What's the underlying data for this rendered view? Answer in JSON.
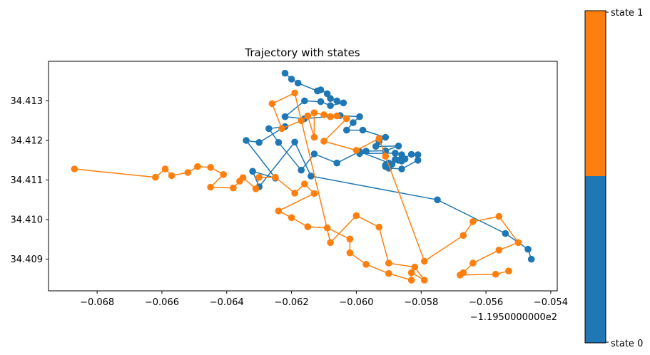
{
  "chart_data": {
    "type": "scatter",
    "title": "Trajectory with states",
    "xlabel": "",
    "ylabel": "",
    "x_offset_label": "−1.1950000000e2",
    "xlim": [
      -0.0695,
      -0.0538
    ],
    "ylim": [
      34.4082,
      34.414
    ],
    "x_ticks": [
      -0.068,
      -0.066,
      -0.064,
      -0.062,
      -0.06,
      -0.058,
      -0.056,
      -0.054
    ],
    "x_tick_labels": [
      "−0.068",
      "−0.066",
      "−0.064",
      "−0.062",
      "−0.060",
      "−0.058",
      "−0.056",
      "−0.054"
    ],
    "y_ticks": [
      34.409,
      34.41,
      34.411,
      34.412,
      34.413
    ],
    "y_tick_labels": [
      "34.409",
      "34.410",
      "34.411",
      "34.412",
      "34.413"
    ],
    "colorbar": {
      "labels": [
        "state 0",
        "state 1"
      ],
      "colors": [
        "#1f77b4",
        "#ff7f0e"
      ]
    },
    "series": [
      {
        "state": 0,
        "color": "#1f77b4",
        "points": [
          [
            -0.0622,
            34.4137
          ],
          [
            -0.062,
            34.41355
          ],
          [
            -0.0618,
            34.41345
          ],
          [
            -0.0612,
            34.41325
          ],
          [
            -0.0611,
            34.41328
          ],
          [
            -0.0609,
            34.41318
          ],
          [
            -0.0608,
            34.41306
          ],
          [
            -0.0606,
            34.413
          ],
          [
            -0.0604,
            34.41295
          ],
          [
            -0.0608,
            34.41288
          ],
          [
            -0.0611,
            34.41298
          ],
          [
            -0.0616,
            34.413
          ],
          [
            -0.0622,
            34.4126
          ],
          [
            -0.0616,
            34.41255
          ],
          [
            -0.0605,
            34.41263
          ],
          [
            -0.0599,
            34.4126
          ],
          [
            -0.0601,
            34.41245
          ],
          [
            -0.0603,
            34.41226
          ],
          [
            -0.0598,
            34.41226
          ],
          [
            -0.0591,
            34.41208
          ],
          [
            -0.0593,
            34.41197
          ],
          [
            -0.0594,
            34.41185
          ],
          [
            -0.0587,
            34.41186
          ],
          [
            -0.0591,
            34.41174
          ],
          [
            -0.0597,
            34.41173
          ],
          [
            -0.0599,
            34.41167
          ],
          [
            -0.0588,
            34.41168
          ],
          [
            -0.0586,
            34.41164
          ],
          [
            -0.0586,
            34.41148
          ],
          [
            -0.0585,
            34.41153
          ],
          [
            -0.0587,
            34.4115
          ],
          [
            -0.0588,
            34.41152
          ],
          [
            -0.059,
            34.41143
          ],
          [
            -0.0591,
            34.41138
          ],
          [
            -0.0591,
            34.41134
          ],
          [
            -0.059,
            34.4113
          ],
          [
            -0.0586,
            34.41128
          ],
          [
            -0.0581,
            34.4115
          ],
          [
            -0.0581,
            34.41164
          ],
          [
            -0.0583,
            34.41165
          ],
          [
            -0.0589,
            34.4114
          ],
          [
            -0.0599,
            34.41172
          ],
          [
            -0.0606,
            34.41143
          ],
          [
            -0.0613,
            34.41166
          ],
          [
            -0.0617,
            34.41125
          ],
          [
            -0.0624,
            34.41195
          ],
          [
            -0.0627,
            34.4123
          ],
          [
            -0.0622,
            34.41235
          ],
          [
            -0.063,
            34.41195
          ],
          [
            -0.0634,
            34.412
          ],
          [
            -0.0625,
            34.41105
          ],
          [
            -0.0632,
            34.41122
          ],
          [
            -0.063,
            34.41083
          ],
          [
            -0.0619,
            34.41196
          ],
          [
            -0.0614,
            34.4111
          ],
          [
            -0.0575,
            34.4105
          ],
          [
            -0.0554,
            34.40965
          ],
          [
            -0.0547,
            34.40925
          ],
          [
            -0.0546,
            34.409
          ]
        ]
      },
      {
        "state": 1,
        "color": "#ff7f0e",
        "points": [
          [
            -0.0687,
            34.41128
          ],
          [
            -0.0662,
            34.41107
          ],
          [
            -0.0659,
            34.41128
          ],
          [
            -0.0657,
            34.41111
          ],
          [
            -0.0652,
            34.41119
          ],
          [
            -0.0649,
            34.41134
          ],
          [
            -0.0645,
            34.41132
          ],
          [
            -0.0641,
            34.41114
          ],
          [
            -0.0645,
            34.41082
          ],
          [
            -0.0638,
            34.4108
          ],
          [
            -0.0636,
            34.41097
          ],
          [
            -0.0635,
            34.41106
          ],
          [
            -0.0631,
            34.41078
          ],
          [
            -0.063,
            34.41107
          ],
          [
            -0.0625,
            34.41107
          ],
          [
            -0.0619,
            34.41067
          ],
          [
            -0.0616,
            34.4109
          ],
          [
            -0.0613,
            34.41066
          ],
          [
            -0.0624,
            34.41022
          ],
          [
            -0.062,
            34.41005
          ],
          [
            -0.0615,
            34.40982
          ],
          [
            -0.0609,
            34.40979
          ],
          [
            -0.0602,
            34.40951
          ],
          [
            -0.0602,
            34.40916
          ],
          [
            -0.0597,
            34.40887
          ],
          [
            -0.059,
            34.40864
          ],
          [
            -0.0583,
            34.40847
          ],
          [
            -0.0583,
            34.40866
          ],
          [
            -0.0579,
            34.40847
          ],
          [
            -0.0582,
            34.4088
          ],
          [
            -0.059,
            34.4089
          ],
          [
            -0.0593,
            34.40981
          ],
          [
            -0.06,
            34.4101
          ],
          [
            -0.0608,
            34.40942
          ],
          [
            -0.0619,
            34.4132
          ],
          [
            -0.0626,
            34.41293
          ],
          [
            -0.0623,
            34.4123
          ],
          [
            -0.0617,
            34.4125
          ],
          [
            -0.0615,
            34.41262
          ],
          [
            -0.0613,
            34.41208
          ],
          [
            -0.0613,
            34.4127
          ],
          [
            -0.061,
            34.41265
          ],
          [
            -0.0608,
            34.4126
          ],
          [
            -0.0606,
            34.41262
          ],
          [
            -0.0603,
            34.41255
          ],
          [
            -0.061,
            34.41198
          ],
          [
            -0.06,
            34.41175
          ],
          [
            -0.0593,
            34.41205
          ],
          [
            -0.0591,
            34.4116
          ],
          [
            -0.0579,
            34.40895
          ],
          [
            -0.0567,
            34.4096
          ],
          [
            -0.0564,
            34.40995
          ],
          [
            -0.0556,
            34.41008
          ],
          [
            -0.055,
            34.40942
          ],
          [
            -0.0556,
            34.40923
          ],
          [
            -0.0564,
            34.4089
          ],
          [
            -0.0567,
            34.40866
          ],
          [
            -0.0568,
            34.4086
          ],
          [
            -0.0557,
            34.40862
          ],
          [
            -0.0553,
            34.4087
          ]
        ]
      }
    ]
  }
}
